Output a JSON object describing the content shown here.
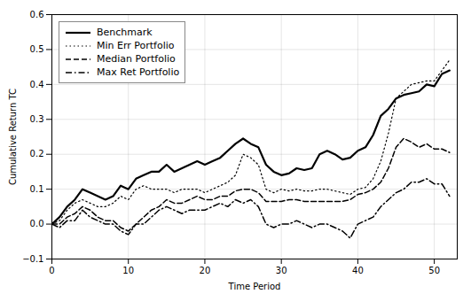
{
  "chart_data": {
    "type": "line",
    "xlabel": "Time Period",
    "ylabel": "Cumulative Return TC",
    "xlim": [
      0,
      53
    ],
    "ylim": [
      -0.1,
      0.6
    ],
    "xticks": [
      0,
      10,
      20,
      30,
      40,
      50
    ],
    "yticks": [
      {
        "value": -0.1,
        "label": "−0.1"
      },
      {
        "value": 0.0,
        "label": "0.0"
      },
      0.1,
      0.2,
      0.3,
      0.4,
      0.5,
      0.6
    ],
    "grid": true,
    "legend": "upper left",
    "x": [
      0,
      1,
      2,
      3,
      4,
      5,
      6,
      7,
      8,
      9,
      10,
      11,
      12,
      13,
      14,
      15,
      16,
      17,
      18,
      19,
      20,
      21,
      22,
      23,
      24,
      25,
      26,
      27,
      28,
      29,
      30,
      31,
      32,
      33,
      34,
      35,
      36,
      37,
      38,
      39,
      40,
      41,
      42,
      43,
      44,
      45,
      46,
      47,
      48,
      49,
      50,
      51,
      52
    ],
    "series": [
      {
        "name": "Benchmark",
        "color": "#000000",
        "line_style": "solid",
        "values": [
          0.0,
          0.02,
          0.05,
          0.07,
          0.1,
          0.09,
          0.08,
          0.07,
          0.08,
          0.11,
          0.1,
          0.13,
          0.14,
          0.15,
          0.15,
          0.17,
          0.15,
          0.16,
          0.17,
          0.18,
          0.17,
          0.18,
          0.19,
          0.21,
          0.23,
          0.245,
          0.23,
          0.22,
          0.17,
          0.15,
          0.14,
          0.145,
          0.16,
          0.155,
          0.16,
          0.2,
          0.21,
          0.2,
          0.185,
          0.19,
          0.21,
          0.22,
          0.255,
          0.31,
          0.33,
          0.36,
          0.37,
          0.375,
          0.38,
          0.4,
          0.395,
          0.43,
          0.44
        ]
      },
      {
        "name": "Min Err Portfolio",
        "color": "#000000",
        "line_style": "dotted",
        "values": [
          0.0,
          0.01,
          0.04,
          0.06,
          0.07,
          0.06,
          0.05,
          0.05,
          0.06,
          0.08,
          0.07,
          0.1,
          0.11,
          0.1,
          0.1,
          0.1,
          0.09,
          0.1,
          0.1,
          0.1,
          0.09,
          0.1,
          0.11,
          0.12,
          0.14,
          0.2,
          0.19,
          0.17,
          0.1,
          0.09,
          0.1,
          0.095,
          0.1,
          0.095,
          0.095,
          0.1,
          0.1,
          0.095,
          0.09,
          0.085,
          0.1,
          0.105,
          0.13,
          0.18,
          0.26,
          0.36,
          0.38,
          0.4,
          0.405,
          0.41,
          0.41,
          0.44,
          0.47
        ]
      },
      {
        "name": "Median Portfolio",
        "color": "#000000",
        "line_style": "dashed",
        "values": [
          0.0,
          0.0,
          0.02,
          0.03,
          0.05,
          0.04,
          0.02,
          0.01,
          0.01,
          -0.01,
          -0.02,
          0.0,
          0.02,
          0.04,
          0.05,
          0.07,
          0.06,
          0.06,
          0.07,
          0.08,
          0.07,
          0.07,
          0.08,
          0.08,
          0.095,
          0.1,
          0.1,
          0.09,
          0.065,
          0.065,
          0.065,
          0.07,
          0.07,
          0.065,
          0.065,
          0.065,
          0.065,
          0.065,
          0.065,
          0.07,
          0.085,
          0.09,
          0.1,
          0.12,
          0.16,
          0.22,
          0.245,
          0.235,
          0.22,
          0.23,
          0.215,
          0.215,
          0.205
        ]
      },
      {
        "name": "Max Ret Portfolio",
        "color": "#000000",
        "line_style": "dashdot",
        "values": [
          0.0,
          -0.01,
          0.01,
          0.01,
          0.04,
          0.02,
          0.01,
          0.0,
          0.0,
          -0.02,
          -0.03,
          0.0,
          0.0,
          0.02,
          0.04,
          0.05,
          0.04,
          0.03,
          0.04,
          0.04,
          0.04,
          0.05,
          0.06,
          0.05,
          0.07,
          0.06,
          0.07,
          0.05,
          0.0,
          -0.01,
          0.0,
          0.0,
          0.01,
          0.0,
          -0.01,
          0.0,
          0.0,
          -0.01,
          -0.02,
          -0.04,
          0.0,
          0.01,
          0.02,
          0.05,
          0.07,
          0.09,
          0.1,
          0.12,
          0.12,
          0.13,
          0.115,
          0.115,
          0.08
        ]
      }
    ]
  }
}
